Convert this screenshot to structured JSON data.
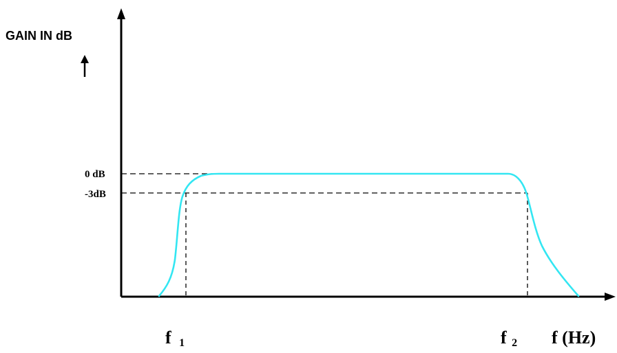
{
  "ylabel": "GAIN IN dB",
  "ticks": {
    "zero_db": "0 dB",
    "minus3_db": "-3dB"
  },
  "xlabels": {
    "f1": {
      "main": "f",
      "sub": "1"
    },
    "f2": {
      "main": "f",
      "sub": "2"
    },
    "axis": "f (Hz)"
  },
  "colors": {
    "curve": "#33e6f2",
    "axis": "#000000",
    "guide": "#000000"
  }
}
